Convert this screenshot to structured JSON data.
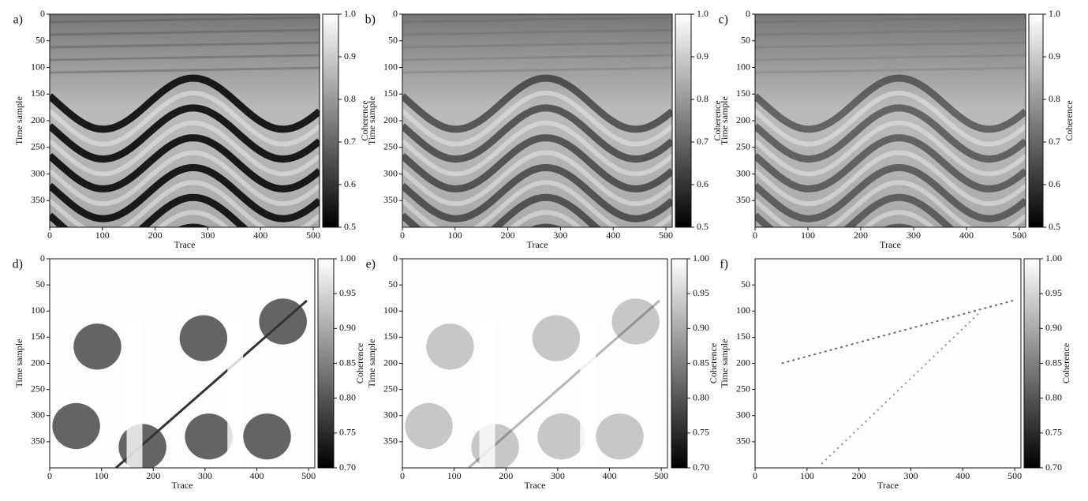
{
  "chart_data": [
    {
      "type": "heatmap",
      "panel_label": "a)",
      "xlabel": "Trace",
      "ylabel": "Time sample",
      "xlim": [
        0,
        512
      ],
      "xticks": [
        0,
        100,
        200,
        300,
        400,
        500
      ],
      "ylim": [
        400,
        0
      ],
      "yticks": [
        0,
        50,
        100,
        150,
        200,
        250,
        300,
        350
      ],
      "colorbar": {
        "label": "Coherence",
        "lim": [
          0.5,
          1.0
        ],
        "ticks": [
          0.5,
          0.6,
          0.7,
          0.8,
          0.9,
          {
            "value": 1.0,
            "label": "1.0"
          }
        ]
      }
    },
    {
      "type": "heatmap",
      "panel_label": "b)",
      "xlabel": "Trace",
      "ylabel": "Time sample",
      "xlim": [
        0,
        512
      ],
      "xticks": [
        0,
        100,
        200,
        300,
        400,
        500
      ],
      "ylim": [
        400,
        0
      ],
      "yticks": [
        0,
        50,
        100,
        150,
        200,
        250,
        300,
        350
      ],
      "colorbar": {
        "label": "Coherence",
        "lim": [
          0.5,
          1.0
        ],
        "ticks": [
          0.5,
          0.6,
          0.7,
          0.8,
          0.9,
          {
            "value": 1.0,
            "label": "1.0"
          }
        ]
      }
    },
    {
      "type": "heatmap",
      "panel_label": "c)",
      "xlabel": "Trace",
      "ylabel": "Time sample",
      "xlim": [
        0,
        512
      ],
      "xticks": [
        0,
        100,
        200,
        300,
        400,
        500
      ],
      "ylim": [
        400,
        0
      ],
      "yticks": [
        0,
        50,
        100,
        150,
        200,
        250,
        300,
        350
      ],
      "colorbar": {
        "label": "Coherence",
        "lim": [
          0.5,
          1.0
        ],
        "ticks": [
          0.5,
          0.6,
          0.7,
          0.8,
          0.9,
          {
            "value": 1.0,
            "label": "1.0"
          }
        ]
      }
    },
    {
      "type": "heatmap",
      "panel_label": "d)",
      "xlabel": "Trace",
      "ylabel": "Time sample",
      "xlim": [
        0,
        512
      ],
      "xticks": [
        0,
        100,
        200,
        300,
        400,
        500
      ],
      "ylim": [
        400,
        0
      ],
      "yticks": [
        0,
        50,
        100,
        150,
        200,
        250,
        300,
        350
      ],
      "colorbar": {
        "label": "Coherence",
        "lim": [
          0.7,
          1.0
        ],
        "ticks": [
          {
            "value": 0.7,
            "label": "0.70"
          },
          0.75,
          {
            "value": 0.8,
            "label": "0.80"
          },
          0.85,
          {
            "value": 0.9,
            "label": "0.90"
          },
          0.95,
          {
            "value": 1.0,
            "label": "1.00"
          }
        ]
      }
    },
    {
      "type": "heatmap",
      "panel_label": "e)",
      "xlabel": "Trace",
      "ylabel": "Time sample",
      "xlim": [
        0,
        512
      ],
      "xticks": [
        0,
        100,
        200,
        300,
        400,
        500
      ],
      "ylim": [
        400,
        0
      ],
      "yticks": [
        0,
        50,
        100,
        150,
        200,
        250,
        300,
        350
      ],
      "colorbar": {
        "label": "Coherence",
        "lim": [
          0.7,
          1.0
        ],
        "ticks": [
          {
            "value": 0.7,
            "label": "0.70"
          },
          0.75,
          {
            "value": 0.8,
            "label": "0.80"
          },
          0.85,
          {
            "value": 0.9,
            "label": "0.90"
          },
          0.95,
          {
            "value": 1.0,
            "label": "1.00"
          }
        ]
      }
    },
    {
      "type": "heatmap",
      "panel_label": "f)",
      "xlabel": "Trace",
      "ylabel": "Time sample",
      "xlim": [
        0,
        512
      ],
      "xticks": [
        0,
        100,
        200,
        300,
        400,
        500
      ],
      "ylim": [
        400,
        0
      ],
      "yticks": [
        50,
        100,
        150,
        200,
        250,
        300,
        350
      ],
      "colorbar": {
        "label": "Coherence",
        "lim": [
          0.7,
          1.0
        ],
        "ticks": [
          {
            "value": 0.7,
            "label": "0.70"
          },
          0.75,
          {
            "value": 0.8,
            "label": "0.80"
          },
          0.85,
          {
            "value": 0.9,
            "label": "0.90"
          },
          0.95,
          {
            "value": 1.0,
            "label": "1.00"
          }
        ]
      }
    }
  ]
}
